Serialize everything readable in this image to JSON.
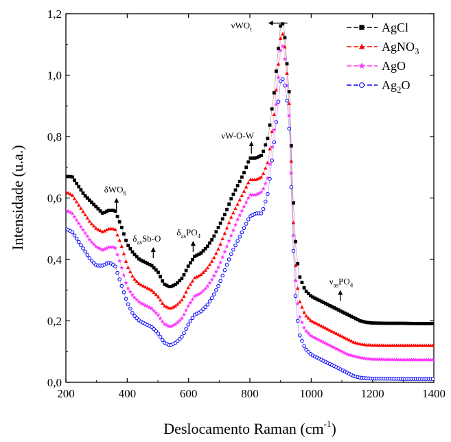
{
  "chart_data": {
    "type": "line",
    "xlabel": "Deslocamento Raman (cm",
    "xlabel_sup": "-1",
    "xlabel_close": ")",
    "ylabel": "Intensidade (u.a.)",
    "xlim": [
      200,
      1400
    ],
    "ylim": [
      0,
      1.2
    ],
    "xticks": [
      200,
      400,
      600,
      800,
      1000,
      1200,
      1400
    ],
    "xtick_labels": [
      "200",
      "400",
      "600",
      "800",
      "1000",
      "1200",
      "1400"
    ],
    "yticks": [
      0,
      0.2,
      0.4,
      0.6,
      0.8,
      1.0,
      1.2
    ],
    "ytick_labels": [
      "0,0",
      "0,2",
      "0,4",
      "0,6",
      "0,8",
      "1,0",
      "1,2"
    ],
    "legend_position": "top-right",
    "series": [
      {
        "name": "AgCl",
        "name_main": "AgCl",
        "name_sub": "",
        "color": "#000000",
        "marker": "square",
        "x": [
          200,
          220,
          240,
          260,
          280,
          300,
          320,
          340,
          360,
          380,
          400,
          420,
          440,
          460,
          480,
          500,
          520,
          540,
          560,
          580,
          600,
          620,
          640,
          660,
          680,
          700,
          720,
          740,
          760,
          780,
          800,
          820,
          840,
          860,
          880,
          900,
          910,
          920,
          930,
          940,
          950,
          960,
          980,
          1000,
          1020,
          1040,
          1060,
          1080,
          1100,
          1120,
          1140,
          1160,
          1180,
          1200,
          1250,
          1300,
          1350,
          1400
        ],
        "y": [
          0.67,
          0.67,
          0.64,
          0.61,
          0.59,
          0.57,
          0.55,
          0.56,
          0.56,
          0.51,
          0.45,
          0.42,
          0.4,
          0.39,
          0.38,
          0.36,
          0.32,
          0.31,
          0.32,
          0.34,
          0.38,
          0.41,
          0.42,
          0.44,
          0.47,
          0.51,
          0.55,
          0.6,
          0.64,
          0.68,
          0.73,
          0.73,
          0.74,
          0.8,
          0.95,
          1.16,
          1.17,
          1.05,
          0.92,
          0.62,
          0.44,
          0.35,
          0.3,
          0.28,
          0.27,
          0.26,
          0.25,
          0.24,
          0.23,
          0.22,
          0.21,
          0.2,
          0.195,
          0.193,
          0.192,
          0.192,
          0.191,
          0.191
        ]
      },
      {
        "name": "AgNO3",
        "name_main": "AgNO",
        "name_sub": "3",
        "color": "#ff0000",
        "marker": "triangle",
        "x": [
          200,
          220,
          240,
          260,
          280,
          300,
          320,
          340,
          360,
          380,
          400,
          420,
          440,
          460,
          480,
          500,
          520,
          540,
          560,
          580,
          600,
          620,
          640,
          660,
          680,
          700,
          720,
          740,
          760,
          780,
          800,
          820,
          840,
          860,
          880,
          900,
          910,
          920,
          930,
          940,
          950,
          960,
          980,
          1000,
          1020,
          1040,
          1060,
          1080,
          1100,
          1120,
          1140,
          1160,
          1180,
          1200,
          1250,
          1300,
          1350,
          1400
        ],
        "y": [
          0.62,
          0.61,
          0.58,
          0.55,
          0.52,
          0.5,
          0.49,
          0.5,
          0.5,
          0.45,
          0.38,
          0.34,
          0.32,
          0.31,
          0.3,
          0.28,
          0.25,
          0.24,
          0.25,
          0.27,
          0.31,
          0.34,
          0.35,
          0.37,
          0.4,
          0.44,
          0.49,
          0.54,
          0.58,
          0.62,
          0.66,
          0.66,
          0.67,
          0.72,
          0.88,
          1.12,
          1.14,
          1.02,
          0.88,
          0.56,
          0.36,
          0.27,
          0.22,
          0.2,
          0.19,
          0.18,
          0.17,
          0.16,
          0.15,
          0.14,
          0.13,
          0.125,
          0.122,
          0.121,
          0.12,
          0.12,
          0.12,
          0.12
        ]
      },
      {
        "name": "AgO",
        "name_main": "AgO",
        "name_sub": "",
        "color": "#ff33ff",
        "marker": "star",
        "x": [
          200,
          220,
          240,
          260,
          280,
          300,
          320,
          340,
          360,
          380,
          400,
          420,
          440,
          460,
          480,
          500,
          520,
          540,
          560,
          580,
          600,
          620,
          640,
          660,
          680,
          700,
          720,
          740,
          760,
          780,
          800,
          820,
          840,
          860,
          880,
          900,
          910,
          920,
          930,
          940,
          950,
          960,
          980,
          1000,
          1020,
          1040,
          1060,
          1080,
          1100,
          1120,
          1140,
          1160,
          1180,
          1200,
          1250,
          1300,
          1350,
          1400
        ],
        "y": [
          0.56,
          0.55,
          0.52,
          0.49,
          0.46,
          0.44,
          0.43,
          0.44,
          0.44,
          0.38,
          0.31,
          0.28,
          0.26,
          0.25,
          0.24,
          0.22,
          0.19,
          0.18,
          0.19,
          0.21,
          0.25,
          0.28,
          0.29,
          0.31,
          0.34,
          0.38,
          0.43,
          0.48,
          0.53,
          0.57,
          0.61,
          0.61,
          0.62,
          0.67,
          0.83,
          1.08,
          1.1,
          0.98,
          0.84,
          0.52,
          0.31,
          0.22,
          0.17,
          0.15,
          0.14,
          0.13,
          0.12,
          0.11,
          0.1,
          0.09,
          0.085,
          0.08,
          0.077,
          0.075,
          0.074,
          0.073,
          0.073,
          0.073
        ]
      },
      {
        "name": "Ag2O",
        "name_main": "Ag",
        "name_sub": "2",
        "name_tail": "O",
        "color": "#0000ff",
        "marker": "circle",
        "x": [
          200,
          220,
          240,
          260,
          280,
          300,
          320,
          340,
          360,
          380,
          400,
          420,
          440,
          460,
          480,
          500,
          520,
          540,
          560,
          580,
          600,
          620,
          640,
          660,
          680,
          700,
          720,
          740,
          760,
          780,
          800,
          820,
          840,
          860,
          880,
          900,
          910,
          920,
          930,
          940,
          950,
          960,
          980,
          1000,
          1020,
          1040,
          1060,
          1080,
          1100,
          1120,
          1140,
          1160,
          1180,
          1200,
          1250,
          1300,
          1350,
          1400
        ],
        "y": [
          0.5,
          0.49,
          0.46,
          0.43,
          0.4,
          0.38,
          0.38,
          0.39,
          0.38,
          0.32,
          0.26,
          0.22,
          0.2,
          0.19,
          0.18,
          0.16,
          0.13,
          0.12,
          0.13,
          0.15,
          0.19,
          0.22,
          0.23,
          0.25,
          0.28,
          0.32,
          0.37,
          0.42,
          0.46,
          0.5,
          0.54,
          0.55,
          0.55,
          0.62,
          0.79,
          0.98,
          0.99,
          0.93,
          0.8,
          0.47,
          0.26,
          0.16,
          0.11,
          0.09,
          0.08,
          0.07,
          0.06,
          0.05,
          0.04,
          0.03,
          0.02,
          0.015,
          0.013,
          0.012,
          0.012,
          0.011,
          0.011,
          0.011
        ]
      }
    ],
    "annotations": [
      {
        "id": "wo6",
        "x": 365,
        "y": 0.56,
        "parts": [
          [
            "δWO",
            ""
          ],
          [
            "6",
            "sub"
          ]
        ]
      },
      {
        "id": "sbo",
        "x": 485,
        "y": 0.4,
        "parts": [
          [
            "δ",
            ""
          ],
          [
            "as",
            "sub"
          ],
          [
            "Sb-O",
            ""
          ]
        ]
      },
      {
        "id": "po4",
        "x": 615,
        "y": 0.42,
        "parts": [
          [
            "δ",
            ""
          ],
          [
            "as",
            "sub"
          ],
          [
            "PO",
            ""
          ],
          [
            "4",
            "sub"
          ]
        ]
      },
      {
        "id": "wow",
        "x": 805,
        "y": 0.74,
        "parts": [
          [
            "νW-O-W",
            ""
          ]
        ]
      },
      {
        "id": "wot",
        "x": 900,
        "y": 1.165,
        "parts": [
          [
            "νWO",
            ""
          ],
          [
            "t",
            "sub"
          ]
        ]
      },
      {
        "id": "nupo4",
        "x": 1095,
        "y": 0.26,
        "parts": [
          [
            "ν",
            ""
          ],
          [
            "as",
            "sub"
          ],
          [
            "PO",
            ""
          ],
          [
            "4",
            "sub"
          ]
        ]
      }
    ]
  }
}
